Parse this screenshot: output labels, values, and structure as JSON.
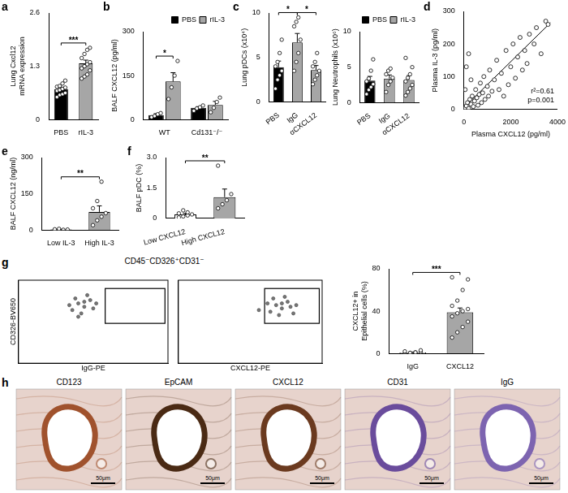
{
  "chart_data": [
    {
      "type": "bar",
      "panel": "a",
      "y_label": [
        "Lung Cxcl12",
        "mRNA expression"
      ],
      "categories": [
        "PBS",
        "rIL-3"
      ],
      "values": [
        0.74,
        1.37
      ],
      "colors": [
        "#000000",
        "#a6a6a6"
      ],
      "errors": [
        0.04,
        0.08
      ],
      "points": [
        [
          0.55,
          0.6,
          0.62,
          0.65,
          0.7,
          0.72,
          0.75,
          0.78,
          0.8,
          0.82,
          0.88,
          0.95
        ],
        [
          1.0,
          1.05,
          1.1,
          1.2,
          1.25,
          1.3,
          1.35,
          1.4,
          1.5,
          1.6,
          1.7,
          1.75
        ]
      ],
      "ylim": [
        0,
        2.6
      ],
      "yticks": [
        0,
        1.3,
        2.6
      ],
      "significance": [
        {
          "text": "***",
          "between": [
            "PBS",
            "rIL-3"
          ]
        }
      ]
    },
    {
      "type": "bar",
      "panel": "b",
      "y_label": "BALF CXCL12 (pg/ml)",
      "categories": [
        "WT",
        "Cd131⁻/⁻"
      ],
      "series": [
        {
          "name": "PBS",
          "color": "#000000",
          "values": [
            15,
            40
          ],
          "errors": [
            5,
            4
          ],
          "points": [
            [
              8,
              12,
              18,
              22
            ],
            [
              30,
              38,
              42,
              48
            ]
          ]
        },
        {
          "name": "rIL-3",
          "color": "#a6a6a6",
          "values": [
            130,
            50
          ],
          "errors": [
            30,
            12
          ],
          "points": [
            [
              70,
              110,
              150,
              200
            ],
            [
              25,
              40,
              60,
              75
            ]
          ]
        }
      ],
      "legend": "top right",
      "ylim": [
        0,
        300
      ],
      "yticks": [
        0,
        150,
        300
      ],
      "significance": [
        {
          "text": "*",
          "category": "WT",
          "between": [
            "PBS",
            "rIL-3"
          ]
        }
      ]
    },
    {
      "type": "bar",
      "panel": "c",
      "y_label": "Lung pDCs (x10⁴)",
      "categories": [
        "PBS",
        "IgG",
        "αCXCL12"
      ],
      "values": [
        3.9,
        6.7,
        3.6
      ],
      "colors": [
        "#000000",
        "#a6a6a6",
        "#a6a6a6"
      ],
      "errors": [
        0.7,
        1.0,
        0.5
      ],
      "points": [
        [
          1.5,
          2.5,
          3,
          3.5,
          4,
          4.5,
          5.5,
          7
        ],
        [
          3.5,
          4.5,
          5.5,
          7,
          8.5,
          9,
          9.5
        ],
        [
          2,
          2.5,
          3,
          3.5,
          4,
          4.5,
          5.5
        ]
      ],
      "ylim": [
        0,
        10
      ],
      "yticks": [
        0,
        5,
        10
      ],
      "significance": [
        {
          "text": "*",
          "between": [
            "PBS",
            "IgG"
          ]
        },
        {
          "text": "*",
          "between": [
            "IgG",
            "αCXCL12"
          ]
        }
      ]
    },
    {
      "type": "bar",
      "y_label": "Lung Neutrophils (x10⁶)",
      "categories": [
        "PBS",
        "IgG",
        "αCXCL12"
      ],
      "values": [
        3.1,
        3.4,
        3.2
      ],
      "colors": [
        "#000000",
        "#a6a6a6",
        "#a6a6a6"
      ],
      "errors": [
        0.6,
        0.5,
        0.6
      ],
      "points": [
        [
          1.2,
          1.8,
          2.2,
          2.6,
          3,
          3.4,
          4.5,
          6.1
        ],
        [
          1.5,
          2.5,
          3,
          3.5,
          4,
          4.5,
          4.8
        ],
        [
          1,
          1.5,
          2,
          2.5,
          3,
          3.5,
          4,
          5,
          6.3
        ]
      ],
      "legend_entries": [
        {
          "name": "PBS",
          "color": "#000000"
        },
        {
          "name": "rIL-3",
          "color": "#a6a6a6"
        }
      ],
      "legend": "top right",
      "ylim": [
        0,
        10
      ],
      "yticks": [
        0,
        5,
        10
      ]
    },
    {
      "type": "scatter",
      "panel": "d",
      "x_label": "Plasma CXCL12 (pg/ml)",
      "y_label": "Plasma IL-3 (pg/ml)",
      "x": [
        0,
        50,
        100,
        150,
        200,
        250,
        300,
        350,
        400,
        450,
        500,
        550,
        600,
        650,
        700,
        750,
        800,
        850,
        900,
        1000,
        1050,
        1100,
        1200,
        1300,
        1400,
        1500,
        1600,
        1700,
        1800,
        1900,
        2000,
        2100,
        2200,
        2300,
        2400,
        2500,
        2600,
        2700,
        2800,
        3000,
        3100,
        3300,
        3500,
        3600,
        100,
        200,
        300,
        50
      ],
      "values": [
        0,
        5,
        10,
        20,
        2,
        30,
        15,
        40,
        8,
        25,
        60,
        35,
        12,
        45,
        80,
        20,
        50,
        100,
        30,
        70,
        40,
        120,
        55,
        90,
        150,
        60,
        110,
        40,
        180,
        75,
        130,
        200,
        95,
        160,
        220,
        120,
        180,
        140,
        230,
        200,
        250,
        170,
        270,
        260,
        130,
        170,
        90,
        60
      ],
      "fit": {
        "x": [
          0,
          3700
        ],
        "y": [
          5,
          265
        ]
      },
      "annotations": [
        "r²=0.61",
        "p=0.001"
      ],
      "xlim": [
        0,
        4000
      ],
      "xticks": [
        0,
        2000,
        4000
      ],
      "ylim": [
        0,
        300
      ],
      "yticks": [
        0,
        100,
        200,
        300
      ]
    },
    {
      "type": "bar",
      "panel": "e",
      "y_label": "BALF CXCL12 (ng/ml)",
      "categories": [
        "Low IL-3",
        "High IL-3"
      ],
      "values": [
        2,
        75
      ],
      "colors": [
        "#ffffff",
        "#a6a6a6"
      ],
      "errors": [
        1,
        25
      ],
      "points": [
        [
          0,
          0.5,
          1,
          2,
          3,
          5
        ],
        [
          20,
          40,
          55,
          70,
          90,
          120,
          200
        ]
      ],
      "ylim": [
        0,
        300
      ],
      "yticks": [
        0,
        150,
        300
      ],
      "significance": [
        {
          "text": "**",
          "between": [
            "Low IL-3",
            "High IL-3"
          ]
        }
      ]
    },
    {
      "type": "bar",
      "panel": "f",
      "y_label": "BALF pDC (%)",
      "categories": [
        "Low CXCL12",
        "High CXCL12"
      ],
      "values": [
        0.2,
        1.05
      ],
      "colors": [
        "#ffffff",
        "#a6a6a6"
      ],
      "errors": [
        0.05,
        0.4
      ],
      "points": [
        [
          0.05,
          0.1,
          0.15,
          0.2,
          0.25,
          0.4,
          0.3
        ],
        [
          0.5,
          0.7,
          0.9,
          1.2,
          2.6
        ]
      ],
      "ylim": [
        0,
        3
      ],
      "yticks": [
        0,
        1.5,
        {
          "value": 3,
          "label": "3.0"
        }
      ],
      "significance": [
        {
          "text": "**",
          "between": [
            "Low CXCL12",
            "High CXCL12"
          ]
        }
      ]
    },
    {
      "type": "scatter",
      "panel": "g",
      "title": "CD45⁻CD326⁺CD31⁻",
      "x_label": "IgG-PE",
      "y_label": "CD326-BV650",
      "x": [
        1.8,
        2.0,
        2.2,
        2.4,
        2.1,
        2.5,
        1.9,
        2.3,
        2.6,
        2.0,
        2.2,
        1.7
      ],
      "values": [
        3.2,
        3.6,
        3.4,
        3.8,
        3.0,
        3.3,
        3.9,
        4.1,
        3.6,
        2.8,
        3.7,
        3.5
      ],
      "gate": {
        "x": [
          2.9,
          4.9
        ],
        "y": [
          2.4,
          4.5
        ]
      },
      "xlim": [
        0,
        5
      ],
      "ylim": [
        0,
        5
      ],
      "tick_labels": false
    },
    {
      "type": "scatter",
      "x_label": "CXCL12-PE",
      "x": [
        3.2,
        3.4,
        3.6,
        3.8,
        3.5,
        3.9,
        3.3,
        3.7,
        4.1,
        3.1,
        3.6,
        2.8,
        4.0
      ],
      "values": [
        3.1,
        3.5,
        3.3,
        3.7,
        2.9,
        3.4,
        3.9,
        4.0,
        3.5,
        3.6,
        3.6,
        3.2,
        3.0
      ],
      "gate": {
        "x": [
          3.0,
          4.9
        ],
        "y": [
          2.4,
          4.5
        ]
      },
      "xlim": [
        0,
        5
      ],
      "ylim": [
        0,
        5
      ],
      "tick_labels": false
    },
    {
      "type": "bar",
      "y_label": [
        "CXCL12+ in",
        "Epithelial cells (%)"
      ],
      "categories": [
        "IgG",
        "CXCL12"
      ],
      "values": [
        1,
        39
      ],
      "colors": [
        "#ffffff",
        "#a6a6a6"
      ],
      "errors": [
        0.3,
        4
      ],
      "points": [
        [
          0,
          0.5,
          1,
          1.5,
          2,
          0.5,
          1,
          3
        ],
        [
          15,
          20,
          25,
          30,
          35,
          38,
          40,
          42,
          45,
          50,
          60,
          70,
          72
        ]
      ],
      "ylim": [
        0,
        80
      ],
      "yticks": [
        0,
        40,
        80
      ],
      "significance": [
        {
          "text": "***",
          "between": [
            "IgG",
            "CXCL12"
          ]
        }
      ]
    }
  ],
  "images": {
    "panel": "h",
    "scale_bar": "50μm",
    "items": [
      {
        "label": "CD123",
        "color": "#a0522d"
      },
      {
        "label": "EpCAM",
        "color": "#4a2a14"
      },
      {
        "label": "CXCL12",
        "color": "#6b3a1f"
      },
      {
        "label": "CD31",
        "color": "#6a4c9c"
      },
      {
        "label": "IgG",
        "color": "#7d64b0"
      }
    ]
  }
}
